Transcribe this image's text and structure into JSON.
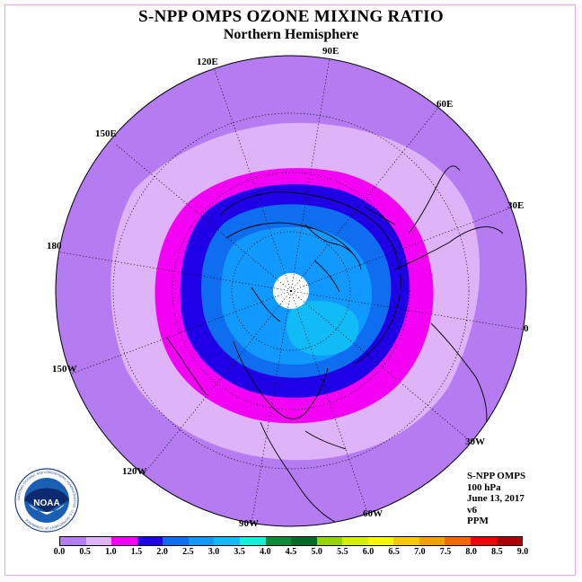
{
  "title": "S-NPP OMPS OZONE MIXING RATIO",
  "subtitle": "Northern Hemisphere",
  "longitude_labels": {
    "lon_90E": "90E",
    "lon_60E": "60E",
    "lon_30E": "30E",
    "lon_0": "0",
    "lon_30W": "30W",
    "lon_60W": "60W",
    "lon_90W": "90W",
    "lon_120W": "120W",
    "lon_150W": "150W",
    "lon_180": "180",
    "lon_150E": "150E",
    "lon_120E": "120E"
  },
  "info": {
    "instrument": "S-NPP OMPS",
    "level": "100 hPa",
    "date": "June 13, 2017",
    "version": "v6",
    "units": "PPM"
  },
  "colorbar": {
    "ticks": [
      "0.0",
      "0.5",
      "1.0",
      "1.5",
      "2.0",
      "2.5",
      "3.0",
      "3.5",
      "4.0",
      "4.5",
      "5.0",
      "5.5",
      "6.0",
      "6.5",
      "7.0",
      "7.5",
      "8.0",
      "8.5",
      "9.0"
    ],
    "colors": [
      "#b57bf0",
      "#dfb3f8",
      "#f400f4",
      "#1f00e6",
      "#0f6ef0",
      "#1199ff",
      "#11bbf6",
      "#11f0d6",
      "#0a8a3a",
      "#006a28",
      "#94d400",
      "#d4f000",
      "#f8f800",
      "#f6c800",
      "#f2a200",
      "#f26800",
      "#f20000",
      "#aa0000"
    ]
  },
  "logo": {
    "text": "NOAA",
    "ring_text": "NATIONAL OCEANIC AND ATMOSPHERIC ADMINISTRATION · U.S. DEPARTMENT OF COMMERCE"
  }
}
